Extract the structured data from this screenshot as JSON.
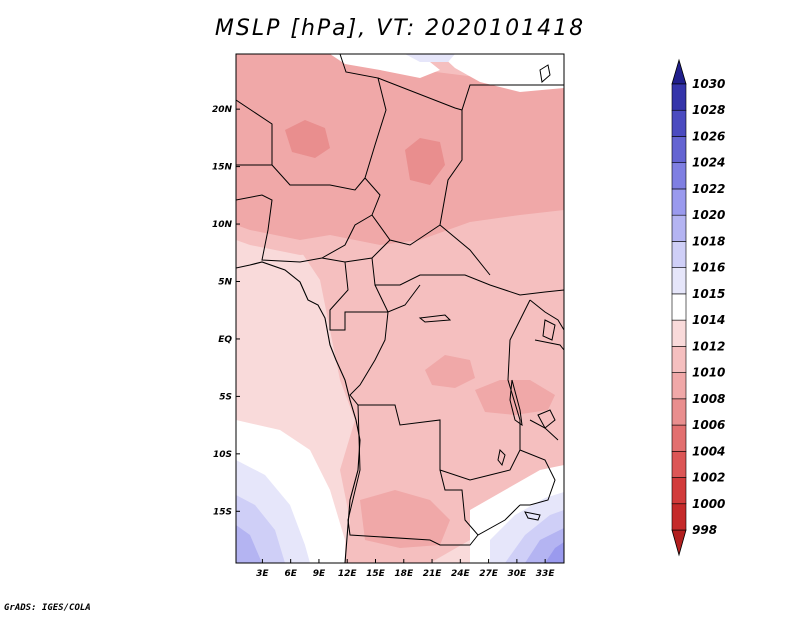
{
  "chart_data": {
    "type": "contour-map",
    "title": "MSLP [hPa], VT: 2020101418",
    "variable": "MSLP",
    "units": "hPa",
    "valid_time": "2020101418",
    "x_ticks": [
      {
        "value": 3,
        "label": "3E"
      },
      {
        "value": 6,
        "label": "6E"
      },
      {
        "value": 9,
        "label": "9E"
      },
      {
        "value": 12,
        "label": "12E"
      },
      {
        "value": 15,
        "label": "15E"
      },
      {
        "value": 18,
        "label": "18E"
      },
      {
        "value": 21,
        "label": "21E"
      },
      {
        "value": 24,
        "label": "24E"
      },
      {
        "value": 27,
        "label": "27E"
      },
      {
        "value": 30,
        "label": "30E"
      },
      {
        "value": 33,
        "label": "33E"
      }
    ],
    "y_ticks": [
      {
        "value": 20,
        "label": "20N"
      },
      {
        "value": 15,
        "label": "15N"
      },
      {
        "value": 10,
        "label": "10N"
      },
      {
        "value": 5,
        "label": "5N"
      },
      {
        "value": 0,
        "label": "EQ"
      },
      {
        "value": -5,
        "label": "5S"
      },
      {
        "value": -10,
        "label": "10S"
      },
      {
        "value": -15,
        "label": "15S"
      }
    ],
    "xlim": [
      0.2,
      35
    ],
    "ylim": [
      -19.5,
      24.8
    ],
    "colorbar": {
      "levels": [
        "998",
        "1000",
        "1002",
        "1004",
        "1006",
        "1008",
        "1010",
        "1012",
        "1014",
        "1015",
        "1016",
        "1018",
        "1020",
        "1022",
        "1024",
        "1026",
        "1028",
        "1030"
      ],
      "colors": [
        "#b21f1f",
        "#c52a2a",
        "#d23b3b",
        "#dc5656",
        "#e26f6f",
        "#e98e8e",
        "#f0a8a8",
        "#f5bfbf",
        "#f9dada",
        "#ffffff",
        "#e6e6fa",
        "#cfcff7",
        "#b4b4f2",
        "#9a9aee",
        "#7f7fe2",
        "#6464d2",
        "#4b4bc0",
        "#3434aa",
        "#201f8c"
      ]
    }
  },
  "credit": "GrADS: IGES/COLA"
}
